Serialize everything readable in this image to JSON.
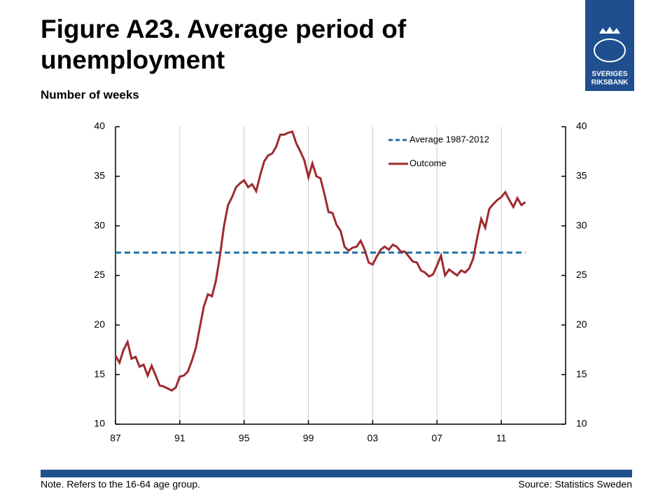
{
  "chart_data": {
    "type": "line",
    "title": "Figure A23. Average period of unemployment",
    "subtitle": "Number of weeks",
    "note": "Note. Refers to the 16-64 age group.",
    "source": "Source: Statistics Sweden",
    "logo": [
      "SVERIGES",
      "RIKSBANK"
    ],
    "xlim": [
      1987,
      2015
    ],
    "xticks": [
      {
        "value": 1987,
        "label": "87"
      },
      {
        "value": 1991,
        "label": "91"
      },
      {
        "value": 1995,
        "label": "95"
      },
      {
        "value": 1999,
        "label": "99"
      },
      {
        "value": 2003,
        "label": "03"
      },
      {
        "value": 2007,
        "label": "07"
      },
      {
        "value": 2011,
        "label": "11"
      }
    ],
    "ylim": [
      10,
      40
    ],
    "yticks": [
      10,
      15,
      20,
      25,
      30,
      35,
      40
    ],
    "y2lim": [
      10,
      40
    ],
    "y2ticks": [
      10,
      15,
      20,
      25,
      30,
      35,
      40
    ],
    "grid": true,
    "legend": "upper right",
    "series": [
      {
        "name": "Average 1987-2012",
        "color": "#1f6fa8",
        "dashed": true,
        "x": [
          1987,
          2012.5
        ],
        "values": [
          27.3,
          27.3
        ]
      },
      {
        "name": "Outcome",
        "color": "#9e2a2f",
        "dashed": false,
        "x": [
          1987,
          1987.25,
          1987.5,
          1987.75,
          1988,
          1988.25,
          1988.5,
          1988.75,
          1989,
          1989.25,
          1989.5,
          1989.75,
          1990,
          1990.25,
          1990.5,
          1990.75,
          1991,
          1991.25,
          1991.5,
          1991.75,
          1992,
          1992.25,
          1992.5,
          1992.75,
          1993,
          1993.25,
          1993.5,
          1993.75,
          1994,
          1994.25,
          1994.5,
          1994.75,
          1995,
          1995.25,
          1995.5,
          1995.75,
          1996,
          1996.25,
          1996.5,
          1996.75,
          1997,
          1997.25,
          1997.5,
          1997.75,
          1998,
          1998.25,
          1998.5,
          1998.75,
          1999,
          1999.25,
          1999.5,
          1999.75,
          2000,
          2000.25,
          2000.5,
          2000.75,
          2001,
          2001.25,
          2001.5,
          2001.75,
          2002,
          2002.25,
          2002.5,
          2002.75,
          2003,
          2003.25,
          2003.5,
          2003.75,
          2004,
          2004.25,
          2004.5,
          2004.75,
          2005,
          2005.25,
          2005.5,
          2005.75,
          2006,
          2006.25,
          2006.5,
          2006.75,
          2007,
          2007.25,
          2007.5,
          2007.75,
          2008,
          2008.25,
          2008.5,
          2008.75,
          2009,
          2009.25,
          2009.5,
          2009.75,
          2010,
          2010.25,
          2010.5,
          2010.75,
          2011,
          2011.25,
          2011.5,
          2011.75,
          2012,
          2012.25,
          2012.5
        ],
        "values": [
          16.9,
          16.2,
          17.5,
          18.3,
          16.6,
          16.8,
          15.8,
          16.0,
          14.9,
          15.9,
          14.9,
          13.9,
          13.8,
          13.6,
          13.4,
          13.7,
          14.8,
          14.9,
          15.3,
          16.4,
          17.7,
          19.8,
          21.9,
          23.1,
          22.9,
          24.5,
          27.0,
          30.0,
          32.1,
          32.9,
          33.9,
          34.3,
          34.6,
          33.9,
          34.2,
          33.5,
          35.1,
          36.5,
          37.1,
          37.3,
          38.0,
          39.2,
          39.2,
          39.4,
          39.5,
          38.3,
          37.5,
          36.6,
          34.9,
          36.3,
          35.0,
          34.8,
          33.2,
          31.4,
          31.3,
          30.1,
          29.5,
          27.9,
          27.5,
          27.8,
          27.9,
          28.5,
          27.6,
          26.3,
          26.1,
          26.9,
          27.6,
          27.9,
          27.6,
          28.1,
          27.9,
          27.4,
          27.4,
          26.9,
          26.4,
          26.3,
          25.5,
          25.3,
          24.9,
          25.1,
          26.0,
          27.0,
          25.0,
          25.6,
          25.3,
          25.0,
          25.5,
          25.3,
          25.7,
          26.7,
          28.8,
          30.7,
          29.8,
          31.7,
          32.2,
          32.6,
          32.9,
          33.4,
          32.6,
          31.9,
          32.8,
          32.1,
          32.4
        ]
      }
    ]
  }
}
